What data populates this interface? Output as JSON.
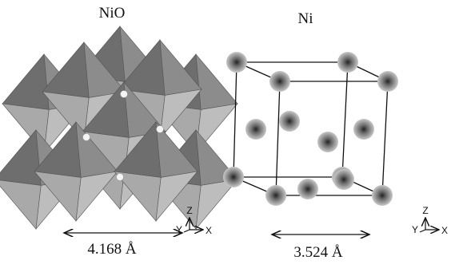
{
  "panels": [
    {
      "title": "NiO",
      "dimension": "4.168 Å",
      "axes": {
        "z": "Z",
        "y": "Y",
        "x": "X"
      }
    },
    {
      "title": "Ni",
      "dimension": "3.524 Å",
      "axes": {
        "z": "Z",
        "y": "Y",
        "x": "X"
      }
    }
  ]
}
